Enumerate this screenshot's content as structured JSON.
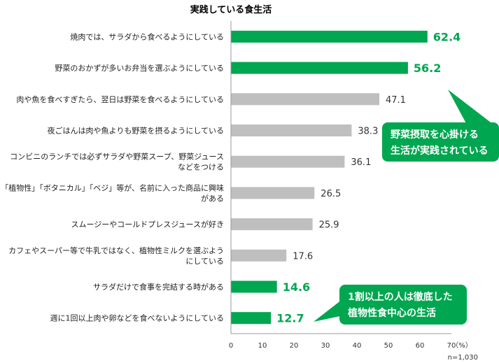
{
  "chart_data": {
    "type": "bar",
    "orientation": "horizontal",
    "title": "実践している食生活",
    "categories": [
      [
        "焼肉では、サラダから食べるようにしている"
      ],
      [
        "野菜のおかずが多いお弁当を選ぶようにしている"
      ],
      [
        "肉や魚を食べすぎたら、翌日は野菜を食べるようにしている"
      ],
      [
        "夜ごはんは肉や魚よりも野菜を摂るようにしている"
      ],
      [
        "コンビニのランチでは必ずサラダや野菜スープ、野菜ジュース",
        "などをつける"
      ],
      [
        "「植物性」「ボタニカル」「ベジ」等が、名前に入った商品に興味",
        "がある"
      ],
      [
        "スムージーやコールドプレスジュースが好き"
      ],
      [
        "カフェやスーパー等で牛乳ではなく、植物性ミルクを選ぶよう",
        "にしている"
      ],
      [
        "サラダだけで食事を完結する時がある"
      ],
      [
        "週に1回以上肉や卵などを食べないようにしている"
      ]
    ],
    "values": [
      62.4,
      56.2,
      47.1,
      38.3,
      36.1,
      26.5,
      25.9,
      17.6,
      14.6,
      12.7
    ],
    "value_labels": [
      "62.4",
      "56.2",
      "47.1",
      "38.3",
      "36.1",
      "26.5",
      "25.9",
      "17.6",
      "14.6",
      "12.7"
    ],
    "highlighted": [
      true,
      true,
      false,
      false,
      false,
      false,
      false,
      false,
      true,
      true
    ],
    "xlim": [
      0,
      70
    ],
    "xticks": [
      "0",
      "10",
      "20",
      "30",
      "40",
      "50",
      "60",
      "70"
    ],
    "unit": "（%）",
    "sample_note": "n=1,030",
    "grid": false,
    "annotations": [
      {
        "lines": [
          "野菜摂取を心掛ける",
          "生活が実践されている"
        ]
      },
      {
        "lines": [
          "1割以上の人は徹底した",
          "植物性食中心の生活"
        ]
      }
    ]
  },
  "colors": {
    "highlight": "#00a650",
    "normal": "#bfbfbf",
    "highlight_text": "#00a650"
  }
}
